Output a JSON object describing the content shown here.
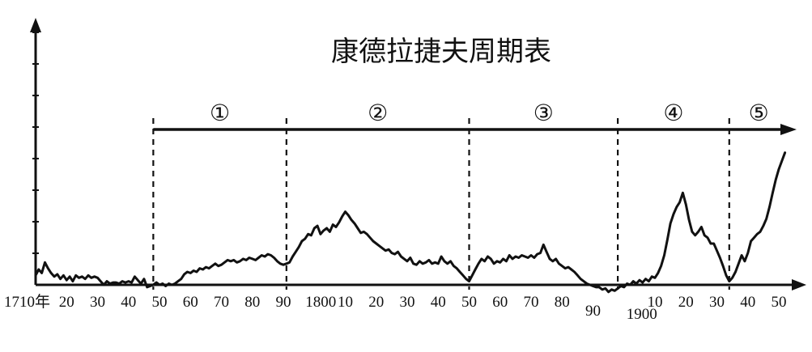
{
  "chart_data": {
    "type": "line",
    "title": "康德拉捷夫周期表",
    "x_tick_labels": [
      "1710年",
      "20",
      "30",
      "40",
      "50",
      "60",
      "70",
      "80",
      "90",
      "1800",
      "10",
      "20",
      "30",
      "40",
      "50",
      "60",
      "70",
      "80",
      "90",
      "1900",
      "10",
      "20",
      "30",
      "40",
      "50"
    ],
    "x_tick_years": [
      1710,
      1720,
      1730,
      1740,
      1750,
      1760,
      1770,
      1780,
      1790,
      1800,
      1810,
      1820,
      1830,
      1840,
      1850,
      1860,
      1870,
      1880,
      1890,
      1900,
      1910,
      1920,
      1930,
      1940,
      1950
    ],
    "periods": [
      {
        "label": "①",
        "start": 1748,
        "end": 1791
      },
      {
        "label": "②",
        "start": 1791,
        "end": 1850
      },
      {
        "label": "③",
        "start": 1850,
        "end": 1898
      },
      {
        "label": "④",
        "start": 1898,
        "end": 1934
      },
      {
        "label": "⑤",
        "start": 1934,
        "end": 1953
      }
    ],
    "ylim": [
      0,
      12
    ],
    "series": [
      {
        "points": [
          [
            1710,
            0.8
          ],
          [
            1711,
            1.3
          ],
          [
            1712,
            1.0
          ],
          [
            1713,
            1.9
          ],
          [
            1714,
            1.4
          ],
          [
            1715,
            1.0
          ],
          [
            1716,
            0.7
          ],
          [
            1717,
            0.9
          ],
          [
            1718,
            0.5
          ],
          [
            1719,
            0.8
          ],
          [
            1720,
            0.4
          ],
          [
            1721,
            0.7
          ],
          [
            1722,
            0.3
          ],
          [
            1723,
            0.8
          ],
          [
            1724,
            0.6
          ],
          [
            1725,
            0.7
          ],
          [
            1726,
            0.5
          ],
          [
            1727,
            0.8
          ],
          [
            1728,
            0.6
          ],
          [
            1729,
            0.7
          ],
          [
            1730,
            0.6
          ],
          [
            1731,
            0.3
          ],
          [
            1732,
            0.0
          ],
          [
            1733,
            0.3
          ],
          [
            1734,
            0.1
          ],
          [
            1735,
            0.2
          ],
          [
            1736,
            0.2
          ],
          [
            1737,
            0.1
          ],
          [
            1738,
            0.3
          ],
          [
            1739,
            0.2
          ],
          [
            1740,
            0.3
          ],
          [
            1741,
            0.2
          ],
          [
            1742,
            0.7
          ],
          [
            1743,
            0.4
          ],
          [
            1744,
            0.1
          ],
          [
            1745,
            0.5
          ],
          [
            1746,
            -0.2
          ],
          [
            1747,
            -0.1
          ],
          [
            1748,
            0.0
          ],
          [
            1749,
            0.2
          ],
          [
            1750,
            0.0
          ],
          [
            1751,
            0.1
          ],
          [
            1752,
            -0.1
          ],
          [
            1753,
            0.1
          ],
          [
            1754,
            0.0
          ],
          [
            1755,
            0.1
          ],
          [
            1756,
            0.3
          ],
          [
            1757,
            0.5
          ],
          [
            1758,
            0.9
          ],
          [
            1759,
            1.1
          ],
          [
            1760,
            1.0
          ],
          [
            1761,
            1.2
          ],
          [
            1762,
            1.1
          ],
          [
            1763,
            1.4
          ],
          [
            1764,
            1.3
          ],
          [
            1765,
            1.5
          ],
          [
            1766,
            1.4
          ],
          [
            1767,
            1.6
          ],
          [
            1768,
            1.8
          ],
          [
            1769,
            1.6
          ],
          [
            1770,
            1.7
          ],
          [
            1771,
            1.9
          ],
          [
            1772,
            2.1
          ],
          [
            1773,
            2.0
          ],
          [
            1774,
            2.1
          ],
          [
            1775,
            1.9
          ],
          [
            1776,
            2.0
          ],
          [
            1777,
            2.2
          ],
          [
            1778,
            2.1
          ],
          [
            1779,
            2.3
          ],
          [
            1780,
            2.2
          ],
          [
            1781,
            2.1
          ],
          [
            1782,
            2.3
          ],
          [
            1783,
            2.5
          ],
          [
            1784,
            2.4
          ],
          [
            1785,
            2.6
          ],
          [
            1786,
            2.5
          ],
          [
            1787,
            2.3
          ],
          [
            1788,
            2.0
          ],
          [
            1789,
            1.8
          ],
          [
            1790,
            1.7
          ],
          [
            1791,
            1.8
          ],
          [
            1792,
            1.9
          ],
          [
            1793,
            2.4
          ],
          [
            1794,
            2.8
          ],
          [
            1795,
            3.2
          ],
          [
            1796,
            3.7
          ],
          [
            1797,
            3.9
          ],
          [
            1798,
            4.3
          ],
          [
            1799,
            4.2
          ],
          [
            1800,
            4.8
          ],
          [
            1801,
            5.0
          ],
          [
            1802,
            4.3
          ],
          [
            1803,
            4.6
          ],
          [
            1804,
            4.8
          ],
          [
            1805,
            4.5
          ],
          [
            1806,
            5.1
          ],
          [
            1807,
            4.9
          ],
          [
            1808,
            5.3
          ],
          [
            1809,
            5.8
          ],
          [
            1810,
            6.2
          ],
          [
            1811,
            5.9
          ],
          [
            1812,
            5.5
          ],
          [
            1813,
            5.2
          ],
          [
            1814,
            4.8
          ],
          [
            1815,
            4.4
          ],
          [
            1816,
            4.5
          ],
          [
            1817,
            4.3
          ],
          [
            1818,
            4.0
          ],
          [
            1819,
            3.7
          ],
          [
            1820,
            3.5
          ],
          [
            1821,
            3.3
          ],
          [
            1822,
            3.1
          ],
          [
            1823,
            2.9
          ],
          [
            1824,
            3.0
          ],
          [
            1825,
            2.7
          ],
          [
            1826,
            2.6
          ],
          [
            1827,
            2.8
          ],
          [
            1828,
            2.4
          ],
          [
            1829,
            2.2
          ],
          [
            1830,
            2.0
          ],
          [
            1831,
            2.3
          ],
          [
            1832,
            1.8
          ],
          [
            1833,
            1.7
          ],
          [
            1834,
            2.0
          ],
          [
            1835,
            1.8
          ],
          [
            1836,
            1.9
          ],
          [
            1837,
            2.1
          ],
          [
            1838,
            1.8
          ],
          [
            1839,
            1.9
          ],
          [
            1840,
            1.8
          ],
          [
            1841,
            2.4
          ],
          [
            1842,
            2.0
          ],
          [
            1843,
            1.8
          ],
          [
            1844,
            2.0
          ],
          [
            1845,
            1.6
          ],
          [
            1846,
            1.4
          ],
          [
            1847,
            1.1
          ],
          [
            1848,
            0.8
          ],
          [
            1849,
            0.5
          ],
          [
            1850,
            0.3
          ],
          [
            1851,
            0.8
          ],
          [
            1852,
            1.3
          ],
          [
            1853,
            1.8
          ],
          [
            1854,
            2.2
          ],
          [
            1855,
            2.0
          ],
          [
            1856,
            2.4
          ],
          [
            1857,
            2.2
          ],
          [
            1858,
            1.8
          ],
          [
            1859,
            2.0
          ],
          [
            1860,
            1.9
          ],
          [
            1861,
            2.2
          ],
          [
            1862,
            2.0
          ],
          [
            1863,
            2.5
          ],
          [
            1864,
            2.2
          ],
          [
            1865,
            2.4
          ],
          [
            1866,
            2.3
          ],
          [
            1867,
            2.5
          ],
          [
            1868,
            2.4
          ],
          [
            1869,
            2.3
          ],
          [
            1870,
            2.5
          ],
          [
            1871,
            2.3
          ],
          [
            1872,
            2.6
          ],
          [
            1873,
            2.7
          ],
          [
            1874,
            3.4
          ],
          [
            1875,
            2.8
          ],
          [
            1876,
            2.2
          ],
          [
            1877,
            2.0
          ],
          [
            1878,
            2.2
          ],
          [
            1879,
            1.8
          ],
          [
            1880,
            1.6
          ],
          [
            1881,
            1.4
          ],
          [
            1882,
            1.5
          ],
          [
            1883,
            1.3
          ],
          [
            1884,
            1.1
          ],
          [
            1885,
            0.8
          ],
          [
            1886,
            0.5
          ],
          [
            1887,
            0.3
          ],
          [
            1888,
            0.1
          ],
          [
            1889,
            0.0
          ],
          [
            1890,
            -0.1
          ],
          [
            1891,
            -0.2
          ],
          [
            1892,
            -0.2
          ],
          [
            1893,
            -0.4
          ],
          [
            1894,
            -0.3
          ],
          [
            1895,
            -0.6
          ],
          [
            1896,
            -0.4
          ],
          [
            1897,
            -0.5
          ],
          [
            1898,
            -0.3
          ],
          [
            1899,
            -0.1
          ],
          [
            1900,
            -0.2
          ],
          [
            1901,
            0.1
          ],
          [
            1902,
            0.0
          ],
          [
            1903,
            0.3
          ],
          [
            1904,
            0.1
          ],
          [
            1905,
            0.4
          ],
          [
            1906,
            0.2
          ],
          [
            1907,
            0.5
          ],
          [
            1908,
            0.3
          ],
          [
            1909,
            0.7
          ],
          [
            1910,
            0.6
          ],
          [
            1911,
            1.0
          ],
          [
            1912,
            1.6
          ],
          [
            1913,
            2.5
          ],
          [
            1914,
            3.8
          ],
          [
            1915,
            5.2
          ],
          [
            1916,
            6.0
          ],
          [
            1917,
            6.6
          ],
          [
            1918,
            7.0
          ],
          [
            1919,
            7.8
          ],
          [
            1920,
            6.8
          ],
          [
            1921,
            5.5
          ],
          [
            1922,
            4.5
          ],
          [
            1923,
            4.2
          ],
          [
            1924,
            4.5
          ],
          [
            1925,
            4.9
          ],
          [
            1926,
            4.2
          ],
          [
            1927,
            4.0
          ],
          [
            1928,
            3.5
          ],
          [
            1929,
            3.5
          ],
          [
            1930,
            2.9
          ],
          [
            1931,
            2.3
          ],
          [
            1932,
            1.6
          ],
          [
            1933,
            0.8
          ],
          [
            1934,
            0.3
          ],
          [
            1935,
            0.6
          ],
          [
            1936,
            1.1
          ],
          [
            1937,
            1.8
          ],
          [
            1938,
            2.5
          ],
          [
            1939,
            2.0
          ],
          [
            1940,
            2.7
          ],
          [
            1941,
            3.7
          ],
          [
            1942,
            4.0
          ],
          [
            1943,
            4.3
          ],
          [
            1944,
            4.5
          ],
          [
            1945,
            5.0
          ],
          [
            1946,
            5.6
          ],
          [
            1947,
            6.6
          ],
          [
            1948,
            7.8
          ],
          [
            1949,
            8.9
          ],
          [
            1950,
            9.8
          ],
          [
            1951,
            10.5
          ],
          [
            1952,
            11.2
          ]
        ]
      }
    ],
    "colors": {
      "ink": "#111111",
      "background": "#ffffff"
    }
  }
}
